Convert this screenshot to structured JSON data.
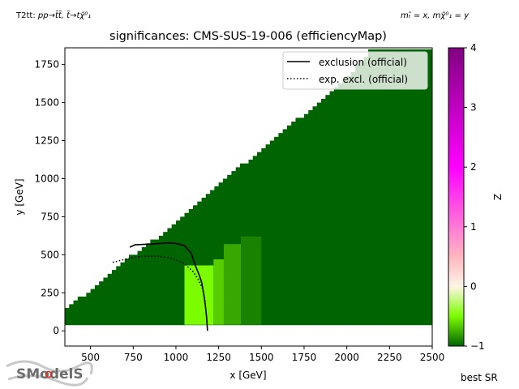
{
  "chart_data": {
    "type": "heatmap",
    "title": "significances: CMS-SUS-19-006 (efficiencyMap)",
    "top_left_label": "T2tt: ",
    "top_left_formula": "pp→t̃t̃, t̃→tχ̃⁰₁",
    "top_right_formula": "mₜ̃ = x, mχ̃⁰₁ = y",
    "xlabel": "x [GeV]",
    "ylabel": "y [GeV]",
    "xlim": [
      350,
      2500
    ],
    "ylim": [
      -100,
      1860
    ],
    "xticks": [
      500,
      750,
      1000,
      1250,
      1500,
      1750,
      2000,
      2250,
      2500
    ],
    "yticks": [
      0,
      250,
      500,
      750,
      1000,
      1250,
      1500,
      1750
    ],
    "colorbar": {
      "label": "Z",
      "range": [
        -1,
        4
      ],
      "ticks": [
        -1,
        0,
        1,
        2,
        3,
        4
      ],
      "colors": [
        "#006400",
        "#7cfc00",
        "#fff5e6",
        "#ffb6c1",
        "#ff00ff",
        "#800080"
      ]
    },
    "grid_region": {
      "x_min": 350,
      "x_max": 2500,
      "y_min": 40,
      "diagonal_edge": [
        [
          350,
          130
        ],
        [
          700,
          460
        ],
        [
          1000,
          700
        ],
        [
          1200,
          920
        ],
        [
          1500,
          1190
        ],
        [
          1800,
          1470
        ],
        [
          2030,
          1700
        ],
        [
          2150,
          1860
        ]
      ]
    },
    "significance_zones": [
      {
        "x_range": [
          1050,
          1220
        ],
        "y_range": [
          40,
          430
        ],
        "z": 0
      },
      {
        "x_range": [
          1220,
          1280
        ],
        "y_range": [
          40,
          470
        ],
        "z": -0.3
      },
      {
        "x_range": [
          1280,
          1380
        ],
        "y_range": [
          40,
          570
        ],
        "z": -0.55
      },
      {
        "x_range": [
          1380,
          1500
        ],
        "y_range": [
          40,
          620
        ],
        "z": -0.8
      }
    ],
    "series": [
      {
        "name": "exclusion (official)",
        "style": "solid",
        "x": [
          730,
          760,
          850,
          960,
          1000,
          1050,
          1090,
          1110,
          1135,
          1150,
          1160,
          1168,
          1175,
          1180,
          1183,
          1185
        ],
        "y": [
          550,
          565,
          570,
          578,
          575,
          560,
          510,
          440,
          370,
          320,
          260,
          200,
          140,
          80,
          30,
          0
        ]
      },
      {
        "name": "exp. excl. (official)",
        "style": "dotted",
        "x": [
          630,
          700,
          800,
          900,
          980,
          1050,
          1100,
          1130,
          1155,
          1165,
          1170
        ],
        "y": [
          450,
          470,
          490,
          490,
          475,
          440,
          390,
          340,
          280,
          230,
          190
        ]
      }
    ],
    "legend_position": "top-right",
    "bottom_right_label": "best SR",
    "logo_text": "SModelS"
  }
}
